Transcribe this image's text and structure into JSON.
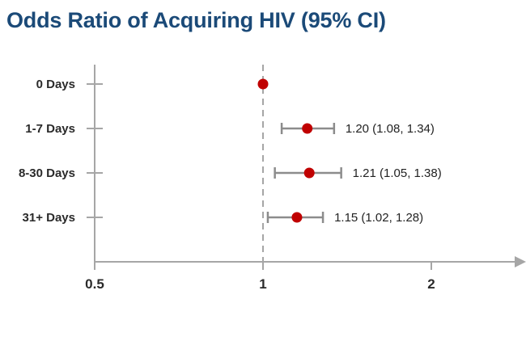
{
  "chart_data": {
    "type": "scatter",
    "subtype": "forest-plot",
    "title": "Odds Ratio of Acquiring HIV (95% CI)",
    "xlabel": "",
    "ylabel": "",
    "x_ticks": [
      0.5,
      1,
      2
    ],
    "x_tick_labels": [
      "0.5",
      "1",
      "2"
    ],
    "xlim": [
      0.5,
      3.0
    ],
    "x_scale": "log",
    "reference_line": 1,
    "grid": false,
    "categories": [
      "0 Days",
      "1-7 Days",
      "8-30 Days",
      "31+ Days"
    ],
    "points": [
      {
        "category": "0 Days",
        "or": 1.0,
        "lower": null,
        "upper": null,
        "label": ""
      },
      {
        "category": "1-7 Days",
        "or": 1.2,
        "lower": 1.08,
        "upper": 1.34,
        "label": "1.20 (1.08, 1.34)"
      },
      {
        "category": "8-30 Days",
        "or": 1.21,
        "lower": 1.05,
        "upper": 1.38,
        "label": "1.21 (1.05, 1.38)"
      },
      {
        "category": "31+ Days",
        "or": 1.15,
        "lower": 1.02,
        "upper": 1.28,
        "label": "1.15 (1.02, 1.28)"
      }
    ]
  },
  "colors": {
    "title": "#1b4a78",
    "point": "#c00000",
    "error_bar": "#8c8c8c",
    "axis": "#a6a6a6",
    "reference": "#a6a6a6"
  }
}
